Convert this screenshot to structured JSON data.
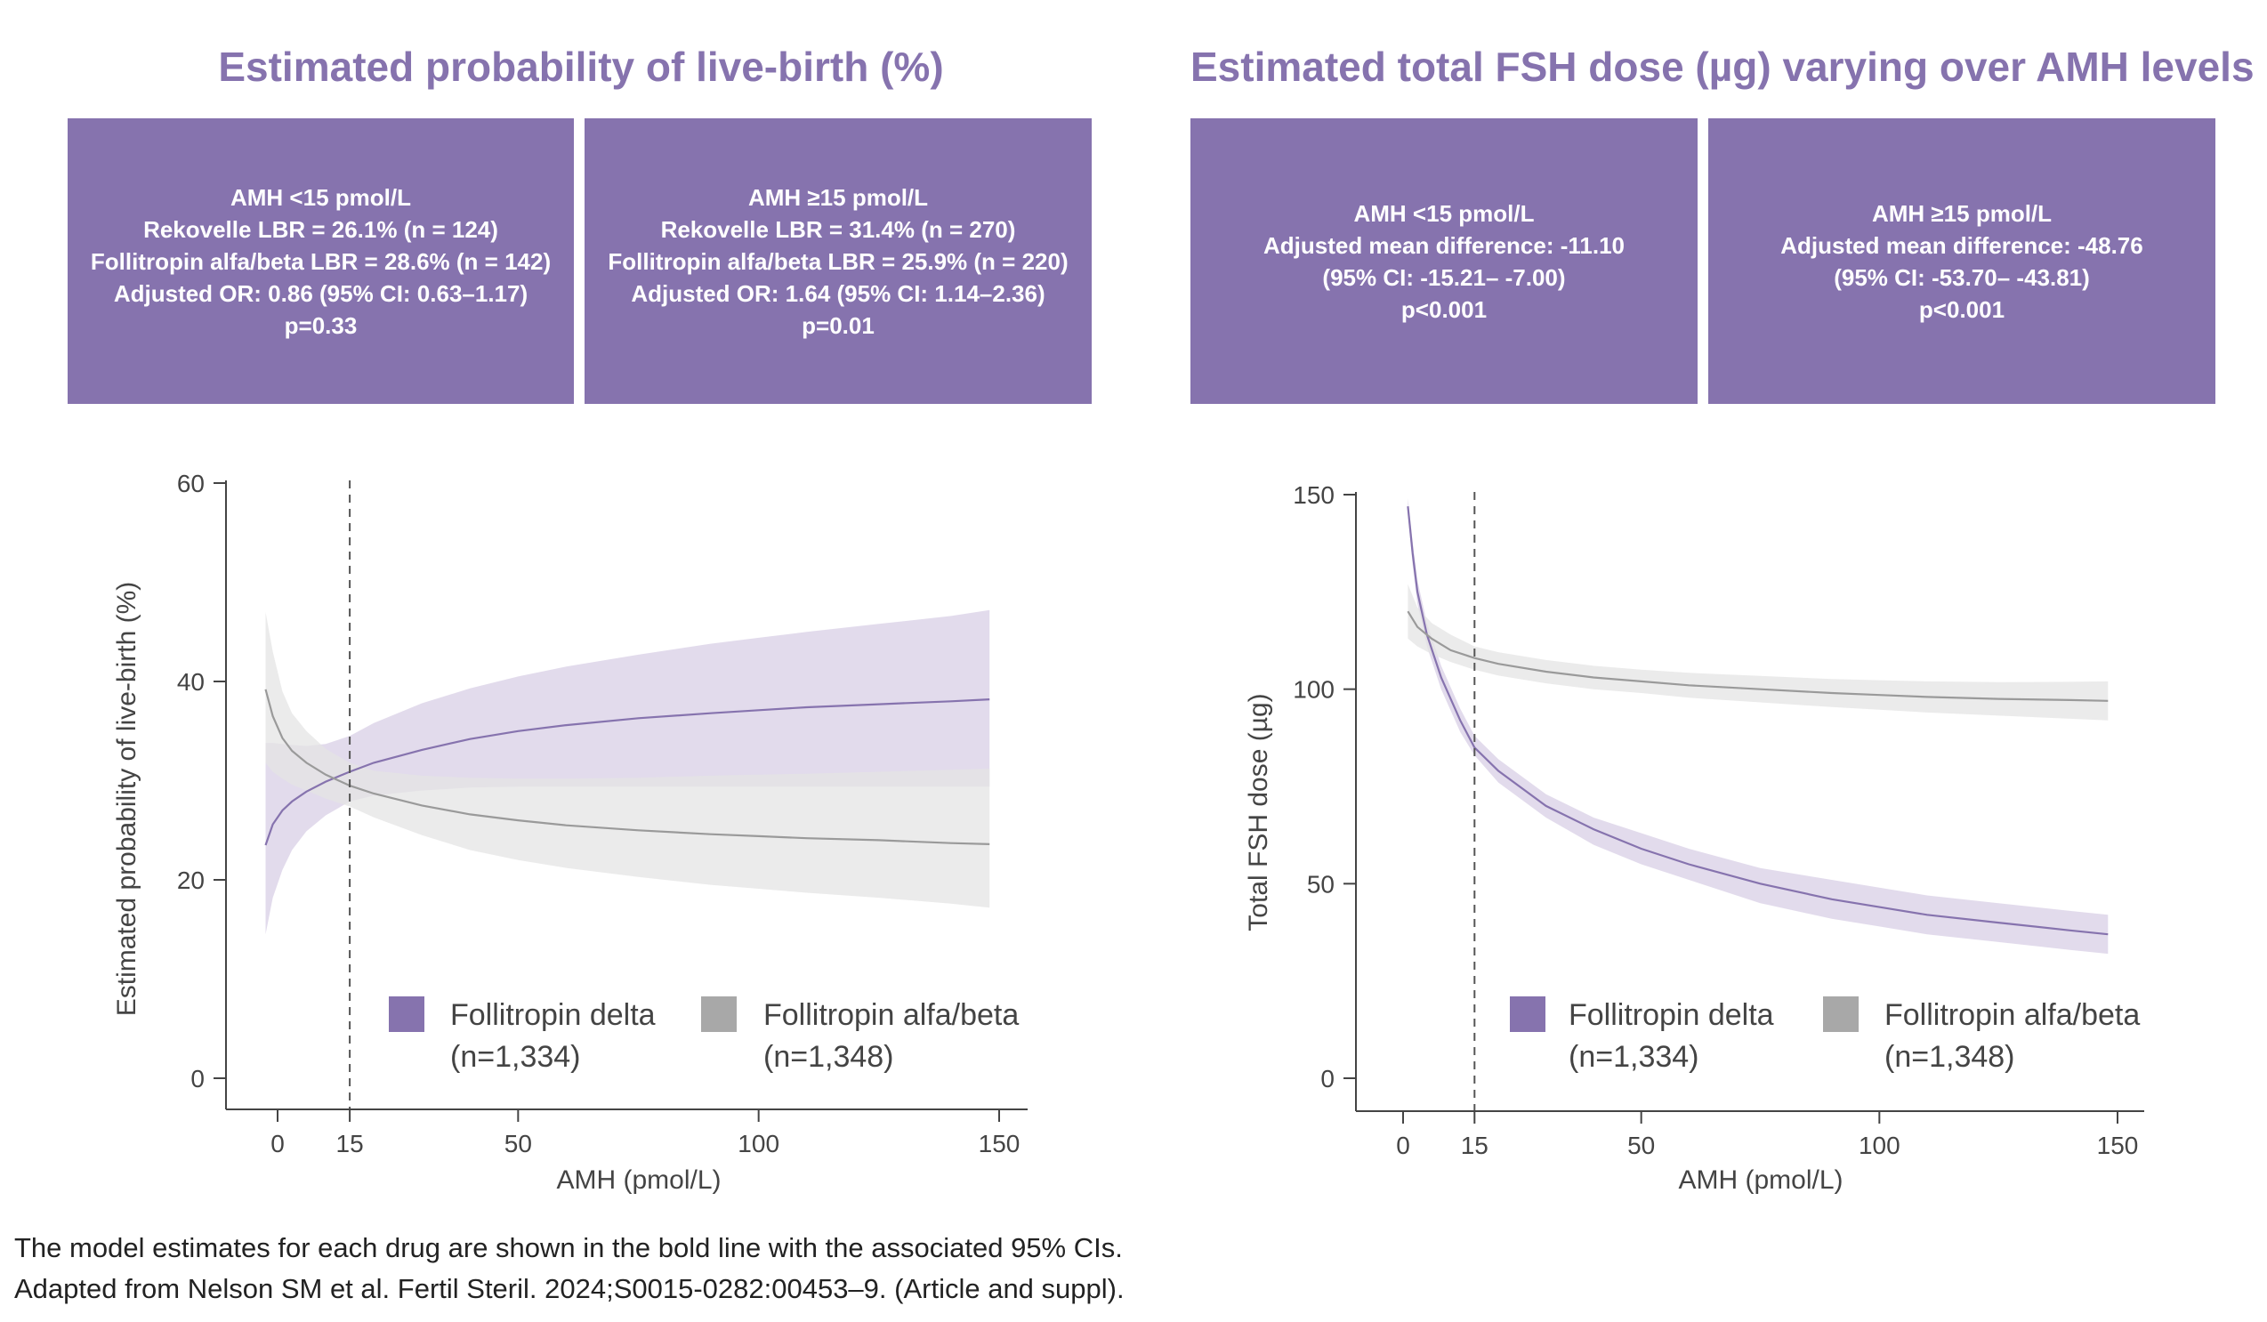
{
  "titles": {
    "left": "Estimated probability of live-birth (%)",
    "right": "Estimated total FSH dose (µg) varying over AMH levels"
  },
  "boxes": {
    "left_low": [
      "AMH <15 pmol/L",
      "Rekovelle LBR = 26.1% (n = 124)",
      "Follitropin alfa/beta LBR = 28.6% (n = 142)",
      "Adjusted OR: 0.86 (95% CI: 0.63–1.17)",
      "p=0.33"
    ],
    "left_high": [
      "AMH ≥15 pmol/L",
      "Rekovelle LBR = 31.4% (n = 270)",
      "Follitropin alfa/beta LBR = 25.9% (n = 220)",
      "Adjusted OR: 1.64 (95% CI: 1.14–2.36)",
      "p=0.01"
    ],
    "right_low": [
      "AMH <15 pmol/L",
      "Adjusted mean difference: -11.10",
      "(95% CI: -15.21– -7.00)",
      "p<0.001"
    ],
    "right_high": [
      "AMH ≥15 pmol/L",
      "Adjusted mean difference: -48.76",
      "(95% CI: -53.70– -43.81)",
      "p<0.001"
    ]
  },
  "legend": {
    "delta_name": "Follitropin delta",
    "delta_n": "(n=1,334)",
    "alfa_name": "Follitropin alfa/beta",
    "alfa_n": "(n=1,348)"
  },
  "colors": {
    "purple": "#8673ae",
    "purple_band": "#ddd5e9",
    "gray_line": "#9a9a9a",
    "gray_band": "#e4e4e4",
    "gray_legend": "#a8a8a8"
  },
  "footnotes": [
    "The model estimates for each drug are shown in the bold line with the associated 95% CIs.",
    "Adapted from Nelson SM et al. Fertil Steril. 2024;S0015-0282:00453–9. (Article and suppl)."
  ],
  "chart_data": [
    {
      "type": "line",
      "xlabel": "AMH (pmol/L)",
      "ylabel": "Estimated probability of live-birth (%)",
      "xlim": [
        -3,
        150
      ],
      "ylim": [
        0,
        60
      ],
      "xticks": [
        0,
        15,
        50,
        100,
        150
      ],
      "yticks": [
        0,
        20,
        40,
        60
      ],
      "reference_line_x": 15,
      "grid": false,
      "legend_position": "bottom-right",
      "series": [
        {
          "name": "Follitropin delta",
          "color": "#8673ae",
          "band_color": "#ddd5e9",
          "x": [
            -2.5,
            -1,
            1,
            3,
            6,
            10,
            15,
            20,
            30,
            40,
            50,
            60,
            75,
            90,
            100,
            110,
            125,
            140,
            148
          ],
          "y": [
            23.5,
            25.6,
            27.0,
            27.9,
            28.9,
            29.9,
            30.9,
            31.8,
            33.1,
            34.2,
            35.0,
            35.6,
            36.3,
            36.8,
            37.1,
            37.4,
            37.7,
            38.0,
            38.2
          ],
          "lower": [
            14.5,
            18.2,
            21.0,
            23.0,
            24.9,
            26.5,
            27.9,
            28.5,
            29.0,
            29.3,
            29.4,
            29.4,
            29.4,
            29.4,
            29.4,
            29.4,
            29.4,
            29.4,
            29.4
          ],
          "upper": [
            33.8,
            33.8,
            33.7,
            33.6,
            33.5,
            33.7,
            34.5,
            35.8,
            37.8,
            39.3,
            40.5,
            41.5,
            42.7,
            43.8,
            44.4,
            45.0,
            45.8,
            46.6,
            47.2
          ]
        },
        {
          "name": "Follitropin alfa/beta",
          "color": "#9a9a9a",
          "band_color": "#e4e4e4",
          "x": [
            -2.5,
            -1,
            1,
            3,
            6,
            10,
            15,
            20,
            30,
            40,
            50,
            60,
            75,
            90,
            100,
            110,
            125,
            140,
            148
          ],
          "y": [
            39.2,
            36.5,
            34.3,
            33.0,
            31.8,
            30.6,
            29.5,
            28.7,
            27.5,
            26.6,
            26.0,
            25.5,
            25.0,
            24.6,
            24.4,
            24.2,
            24.0,
            23.7,
            23.6
          ],
          "lower": [
            31.8,
            30.9,
            30.2,
            29.6,
            29.0,
            28.2,
            27.4,
            26.3,
            24.5,
            23.0,
            22.0,
            21.2,
            20.3,
            19.5,
            19.1,
            18.7,
            18.2,
            17.6,
            17.2
          ],
          "upper": [
            47.0,
            43.0,
            39.0,
            36.8,
            35.0,
            33.2,
            31.8,
            31.0,
            30.5,
            30.3,
            30.2,
            30.2,
            30.3,
            30.5,
            30.6,
            30.7,
            30.9,
            31.1,
            31.2
          ]
        }
      ]
    },
    {
      "type": "line",
      "xlabel": "AMH (pmol/L)",
      "ylabel": "Total FSH dose (µg)",
      "xlim": [
        -10,
        155
      ],
      "ylim": [
        0,
        150
      ],
      "xticks": [
        0,
        15,
        50,
        100,
        150
      ],
      "yticks": [
        0,
        50,
        100,
        150
      ],
      "reference_line_x": 15,
      "grid": false,
      "legend_position": "bottom-right",
      "series": [
        {
          "name": "Follitropin delta",
          "color": "#8673ae",
          "band_color": "#ddd5e9",
          "x": [
            1,
            2,
            3,
            5,
            8,
            12,
            15,
            20,
            30,
            40,
            50,
            60,
            75,
            90,
            100,
            110,
            125,
            140,
            148
          ],
          "y": [
            147,
            135,
            125,
            114,
            103,
            92,
            85,
            79,
            70,
            64,
            59,
            55,
            50,
            46,
            44,
            42,
            40,
            38,
            37
          ],
          "lower": [
            145,
            132,
            122,
            111,
            100,
            89,
            83,
            76,
            67,
            60,
            55,
            51,
            45,
            41,
            39,
            37,
            35,
            33,
            32
          ],
          "upper": [
            149,
            138,
            128,
            117,
            106,
            95,
            88,
            82,
            73,
            67,
            63,
            59,
            54,
            51,
            49,
            47,
            45,
            43,
            42
          ]
        },
        {
          "name": "Follitropin alfa/beta",
          "color": "#9a9a9a",
          "band_color": "#e4e4e4",
          "x": [
            1,
            3,
            6,
            10,
            15,
            20,
            30,
            40,
            50,
            60,
            75,
            90,
            100,
            110,
            125,
            140,
            148
          ],
          "y": [
            120,
            116,
            113,
            110,
            108,
            106.5,
            104.5,
            103,
            102,
            101,
            100,
            99,
            98.5,
            98,
            97.5,
            97.2,
            97
          ],
          "lower": [
            113,
            111,
            109,
            107,
            105,
            103.5,
            101.5,
            100,
            99,
            97.8,
            96.6,
            95.4,
            94.7,
            94,
            93.2,
            92.4,
            92
          ],
          "upper": [
            127,
            121,
            117,
            114,
            111,
            109.5,
            107.5,
            106,
            105,
            104.2,
            103.4,
            102.6,
            102.3,
            102,
            101.8,
            101.9,
            102
          ]
        }
      ]
    }
  ]
}
